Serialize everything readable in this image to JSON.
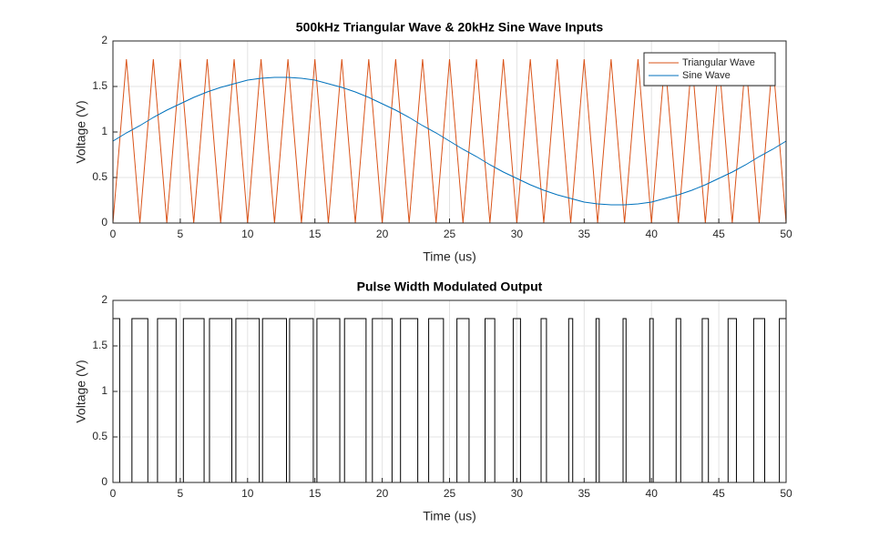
{
  "chart_data": [
    {
      "type": "line",
      "title": "500kHz Triangular Wave & 20kHz Sine Wave Inputs",
      "xlabel": "Time (us)",
      "ylabel": "Voltage (V)",
      "x": [
        0,
        1,
        2,
        3,
        4,
        5,
        6,
        7,
        8,
        9,
        10,
        11,
        12,
        13,
        14,
        15,
        16,
        17,
        18,
        19,
        20,
        21,
        22,
        23,
        24,
        25,
        26,
        27,
        28,
        29,
        30,
        31,
        32,
        33,
        34,
        35,
        36,
        37,
        38,
        39,
        40,
        41,
        42,
        43,
        44,
        45,
        46,
        47,
        48,
        49,
        50
      ],
      "series": [
        {
          "name": "Triangular Wave",
          "color": "#d95319",
          "values": [
            0,
            1.8,
            0,
            1.8,
            0,
            1.8,
            0,
            1.8,
            0,
            1.8,
            0,
            1.8,
            0,
            1.8,
            0,
            1.8,
            0,
            1.8,
            0,
            1.8,
            0,
            1.8,
            0,
            1.8,
            0,
            1.8,
            0,
            1.8,
            0,
            1.8,
            0,
            1.8,
            0,
            1.8,
            0,
            1.8,
            0,
            1.8,
            0,
            1.8,
            0,
            1.8,
            0,
            1.8,
            0,
            1.8,
            0,
            1.8,
            0,
            1.8,
            0
          ]
        },
        {
          "name": "Sine Wave",
          "color": "#0072bd",
          "values": [
            0.9,
            0.99,
            1.07,
            1.16,
            1.24,
            1.31,
            1.38,
            1.44,
            1.49,
            1.53,
            1.57,
            1.59,
            1.6,
            1.6,
            1.59,
            1.57,
            1.53,
            1.49,
            1.44,
            1.38,
            1.31,
            1.24,
            1.16,
            1.07,
            0.99,
            0.9,
            0.81,
            0.73,
            0.64,
            0.56,
            0.49,
            0.42,
            0.36,
            0.31,
            0.27,
            0.23,
            0.21,
            0.2,
            0.2,
            0.21,
            0.23,
            0.27,
            0.31,
            0.36,
            0.42,
            0.49,
            0.56,
            0.64,
            0.73,
            0.81,
            0.9
          ]
        }
      ],
      "xlim": [
        0,
        50
      ],
      "xticks": [
        0,
        5,
        10,
        15,
        20,
        25,
        30,
        35,
        40,
        45,
        50
      ],
      "ylim": [
        0,
        2
      ],
      "yticks": [
        0,
        0.5,
        1,
        1.5,
        2
      ],
      "grid": true,
      "legend": "northeast"
    },
    {
      "type": "line",
      "title": "Pulse Width Modulated Output",
      "xlabel": "Time (us)",
      "ylabel": "Voltage (V)",
      "x": [
        0,
        0.5,
        0.5,
        1.41,
        1.41,
        2.59,
        2.59,
        3.31,
        3.31,
        4.69,
        4.69,
        5.23,
        5.23,
        6.77,
        6.77,
        7.17,
        7.17,
        8.83,
        8.83,
        9.13,
        9.13,
        10.87,
        10.87,
        11.11,
        11.11,
        12.89,
        12.89,
        13.12,
        13.12,
        14.88,
        14.88,
        15.15,
        15.15,
        16.85,
        16.85,
        17.2,
        17.2,
        18.8,
        18.8,
        19.27,
        19.27,
        20.73,
        20.73,
        21.36,
        21.36,
        22.64,
        22.64,
        23.45,
        23.45,
        24.55,
        24.55,
        25.55,
        25.55,
        26.45,
        26.45,
        27.64,
        27.64,
        28.36,
        28.36,
        29.73,
        29.73,
        30.27,
        30.27,
        31.8,
        31.8,
        32.2,
        32.2,
        33.85,
        33.85,
        34.15,
        34.15,
        35.88,
        35.88,
        36.12,
        36.12,
        37.89,
        37.89,
        38.11,
        38.11,
        39.87,
        39.87,
        40.13,
        40.13,
        41.83,
        41.83,
        42.17,
        42.17,
        43.77,
        43.77,
        44.23,
        44.23,
        45.69,
        45.69,
        46.31,
        46.31,
        47.59,
        47.59,
        48.41,
        48.41,
        49.5,
        49.5,
        50
      ],
      "series": [
        {
          "color": "#000000",
          "values": [
            1.8,
            1.8,
            0,
            0,
            1.8,
            1.8,
            0,
            0,
            1.8,
            1.8,
            0,
            0,
            1.8,
            1.8,
            0,
            0,
            1.8,
            1.8,
            0,
            0,
            1.8,
            1.8,
            0,
            0,
            1.8,
            1.8,
            0,
            0,
            1.8,
            1.8,
            0,
            0,
            1.8,
            1.8,
            0,
            0,
            1.8,
            1.8,
            0,
            0,
            1.8,
            1.8,
            0,
            0,
            1.8,
            1.8,
            0,
            0,
            1.8,
            1.8,
            0,
            0,
            1.8,
            1.8,
            0,
            0,
            1.8,
            1.8,
            0,
            0,
            1.8,
            1.8,
            0,
            0,
            1.8,
            1.8,
            0,
            0,
            1.8,
            1.8,
            0,
            0,
            1.8,
            1.8,
            0,
            0,
            1.8,
            1.8,
            0,
            0,
            1.8,
            1.8,
            0,
            0,
            1.8,
            1.8,
            0,
            0,
            1.8,
            1.8,
            0,
            0,
            1.8,
            1.8,
            0,
            0,
            1.8,
            1.8,
            0,
            0,
            1.8,
            1.8
          ]
        }
      ],
      "xlim": [
        0,
        50
      ],
      "xticks": [
        0,
        5,
        10,
        15,
        20,
        25,
        30,
        35,
        40,
        45,
        50
      ],
      "ylim": [
        0,
        2
      ],
      "yticks": [
        0,
        0.5,
        1,
        1.5,
        2
      ],
      "grid": true
    }
  ]
}
